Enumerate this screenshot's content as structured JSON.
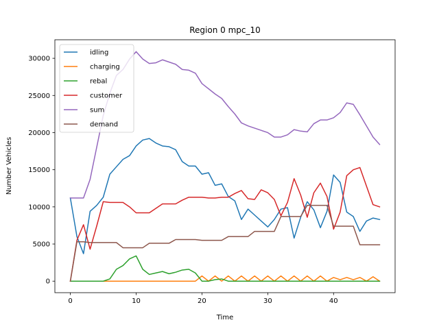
{
  "chart_data": {
    "type": "line",
    "title": "Region 0 mpc_10",
    "xlabel": "Time",
    "ylabel": "Number Vehicles",
    "xlim": [
      -2.35,
      49.35
    ],
    "ylim": [
      -1550,
      32500
    ],
    "xticks": [
      0,
      10,
      20,
      30,
      40
    ],
    "yticks": [
      0,
      5000,
      10000,
      15000,
      20000,
      25000,
      30000
    ],
    "grid": false,
    "legend": "top-left",
    "x": [
      0,
      1,
      2,
      3,
      4,
      5,
      6,
      7,
      8,
      9,
      10,
      11,
      12,
      13,
      14,
      15,
      16,
      17,
      18,
      19,
      20,
      21,
      22,
      23,
      24,
      25,
      26,
      27,
      28,
      29,
      30,
      31,
      32,
      33,
      34,
      35,
      36,
      37,
      38,
      39,
      40,
      41,
      42,
      43,
      44,
      45,
      46,
      47
    ],
    "series": [
      {
        "name": "idling",
        "color": "#1f77b4",
        "values": [
          11200,
          6000,
          3700,
          9400,
          10200,
          11300,
          14400,
          15400,
          16400,
          16900,
          18200,
          19000,
          19200,
          18600,
          18200,
          18100,
          17700,
          16100,
          15500,
          15500,
          14400,
          14600,
          12900,
          13100,
          11400,
          10800,
          8300,
          9700,
          8900,
          8100,
          7300,
          8300,
          9700,
          9900,
          5800,
          8600,
          10700,
          9600,
          7200,
          9400,
          14300,
          13300,
          9300,
          8700,
          6700,
          8100,
          8500,
          8300
        ]
      },
      {
        "name": "charging",
        "color": "#ff7f0e",
        "values": [
          0,
          0,
          0,
          0,
          0,
          0,
          0,
          0,
          0,
          0,
          0,
          0,
          0,
          0,
          0,
          0,
          0,
          0,
          0,
          0,
          700,
          0,
          700,
          0,
          700,
          0,
          700,
          0,
          700,
          0,
          700,
          0,
          700,
          0,
          700,
          0,
          700,
          0,
          700,
          0,
          500,
          200,
          500,
          200,
          500,
          0,
          600,
          0
        ]
      },
      {
        "name": "rebal",
        "color": "#2ca02c",
        "values": [
          0,
          0,
          0,
          0,
          0,
          0,
          300,
          1600,
          2100,
          3000,
          3400,
          1600,
          900,
          1100,
          1300,
          1000,
          1200,
          1500,
          1600,
          1100,
          0,
          0,
          200,
          300,
          0,
          0,
          0,
          0,
          0,
          0,
          0,
          0,
          0,
          0,
          0,
          0,
          0,
          0,
          0,
          0,
          0,
          0,
          0,
          0,
          0,
          0,
          0,
          0
        ]
      },
      {
        "name": "customer",
        "color": "#d62728",
        "values": [
          0,
          5500,
          7600,
          4300,
          7400,
          10700,
          10600,
          10600,
          10600,
          10000,
          9200,
          9200,
          9200,
          9800,
          10400,
          10400,
          10400,
          10900,
          11300,
          11300,
          11300,
          11200,
          11200,
          11300,
          11300,
          11800,
          12200,
          11100,
          11000,
          12300,
          11900,
          11000,
          8800,
          10600,
          13800,
          11600,
          8600,
          11900,
          13200,
          11400,
          7000,
          9300,
          14200,
          15000,
          15300,
          12800,
          10300,
          10000
        ]
      },
      {
        "name": "sum",
        "color": "#9467bd",
        "values": [
          11200,
          11200,
          11200,
          13700,
          18000,
          22300,
          25300,
          27700,
          28500,
          29900,
          30900,
          29900,
          29300,
          29400,
          29800,
          29500,
          29200,
          28500,
          28400,
          28000,
          26600,
          25900,
          25200,
          24600,
          23500,
          22500,
          21300,
          20900,
          20600,
          20300,
          20000,
          19400,
          19400,
          19700,
          20400,
          20200,
          20100,
          21200,
          21700,
          21700,
          22000,
          22700,
          24000,
          23800,
          22400,
          20900,
          19400,
          18400
        ]
      },
      {
        "name": "demand",
        "color": "#8c564b",
        "values": [
          0,
          5300,
          5300,
          5200,
          5200,
          5200,
          5200,
          5200,
          4500,
          4500,
          4500,
          4500,
          5100,
          5100,
          5100,
          5100,
          5600,
          5600,
          5600,
          5600,
          5500,
          5500,
          5500,
          5500,
          6000,
          6000,
          6000,
          6000,
          6700,
          6700,
          6700,
          6700,
          8700,
          8700,
          8700,
          8700,
          10200,
          10200,
          10200,
          10200,
          7400,
          7400,
          7400,
          7400,
          4900,
          4900,
          4900,
          4900
        ]
      }
    ]
  }
}
